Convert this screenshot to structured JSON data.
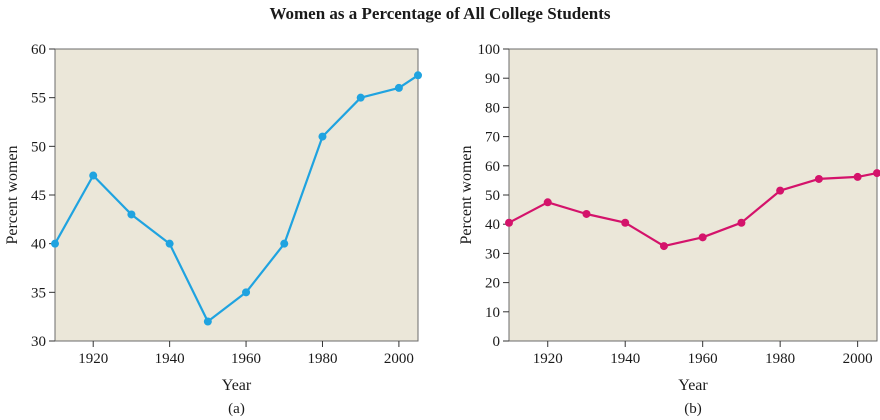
{
  "figure_title": "Women as a Percentage of All College Students",
  "chart_data": [
    {
      "type": "line",
      "panel_label": "(a)",
      "xlabel": "Year",
      "ylabel": "Percent  women",
      "x": [
        1910,
        1920,
        1930,
        1940,
        1950,
        1960,
        1970,
        1980,
        1990,
        2000,
        2005
      ],
      "series": [
        {
          "values": [
            40,
            47,
            43,
            40,
            32,
            35,
            40,
            51,
            55,
            56,
            57.3
          ],
          "color": "#1fa3e0"
        }
      ],
      "xlim": [
        1910,
        2005
      ],
      "ylim": [
        30,
        60
      ],
      "xticks": [
        1920,
        1940,
        1960,
        1980,
        2000
      ],
      "yticks": [
        30,
        35,
        40,
        45,
        50,
        55,
        60
      ],
      "plot_background": "#ebe7d9"
    },
    {
      "type": "line",
      "panel_label": "(b)",
      "xlabel": "Year",
      "ylabel": "Percent women",
      "x": [
        1910,
        1920,
        1930,
        1940,
        1950,
        1960,
        1970,
        1980,
        1990,
        2000,
        2005
      ],
      "series": [
        {
          "values": [
            40.5,
            47.5,
            43.5,
            40.5,
            32.5,
            35.5,
            40.5,
            51.5,
            55.5,
            56.2,
            57.5
          ],
          "color": "#d4136b"
        }
      ],
      "xlim": [
        1910,
        2005
      ],
      "ylim": [
        0,
        100
      ],
      "xticks": [
        1920,
        1940,
        1960,
        1980,
        2000
      ],
      "yticks": [
        0,
        10,
        20,
        30,
        40,
        50,
        60,
        70,
        80,
        90,
        100
      ],
      "plot_background": "#ebe7d9"
    }
  ]
}
